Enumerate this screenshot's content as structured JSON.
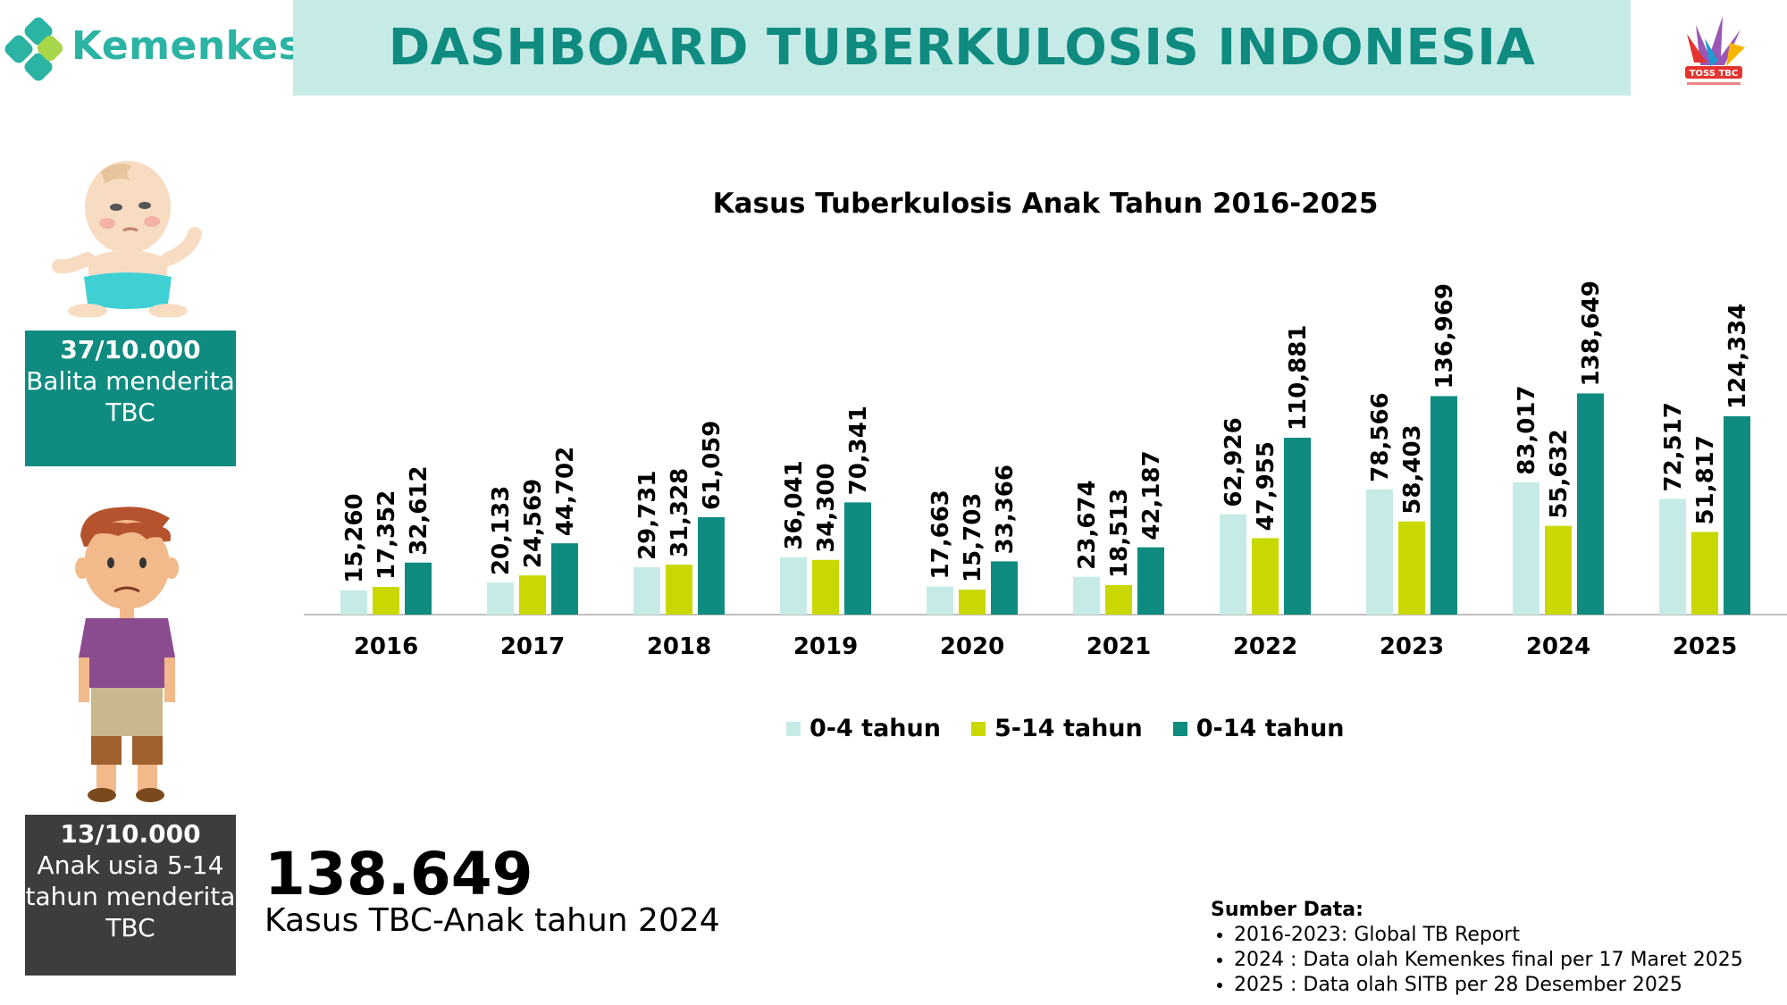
{
  "header": {
    "brand": "Kemenkes",
    "title": "DASHBOARD TUBERKULOSIS INDONESIA",
    "partner_logo_text": "TOSS TBC"
  },
  "colors": {
    "teal": "#0f8b80",
    "light_teal": "#c6ebe7",
    "lime": "#c9d800",
    "dark": "#3d3d3d",
    "brand_green": "#2bb3a3"
  },
  "stats": {
    "balita_rate": "37/10.000",
    "balita_desc": "Balita menderita TBC",
    "anak_rate": "13/10.000",
    "anak_desc": "Anak usia 5-14 tahun menderita TBC",
    "highlight_value": "138.649",
    "highlight_caption": "Kasus TBC-Anak tahun 2024"
  },
  "source": {
    "heading": "Sumber Data:",
    "items": [
      "2016-2023: Global TB Report",
      "2024 : Data olah Kemenkes final per 17 Maret 2025",
      "2025 : Data olah SITB per 28 Desember 2025"
    ]
  },
  "chart_data": {
    "type": "bar",
    "title": "Kasus Tuberkulosis Anak Tahun 2016-2025",
    "categories": [
      "2016",
      "2017",
      "2018",
      "2019",
      "2020",
      "2021",
      "2022",
      "2023",
      "2024",
      "2025"
    ],
    "series": [
      {
        "name": "0-4 tahun",
        "color": "#c6ebe7",
        "values": [
          15260,
          20133,
          29731,
          36041,
          17663,
          23674,
          62926,
          78566,
          83017,
          72517
        ],
        "labels": [
          "15,260",
          "20,133",
          "29,731",
          "36,041",
          "17,663",
          "23,674",
          "62,926",
          "78,566",
          "83,017",
          "72,517"
        ]
      },
      {
        "name": "5-14 tahun",
        "color": "#c9d800",
        "values": [
          17352,
          24569,
          31328,
          34300,
          15703,
          18513,
          47955,
          58403,
          55632,
          51817
        ],
        "labels": [
          "17,352",
          "24,569",
          "31,328",
          "34,300",
          "15,703",
          "18,513",
          "47,955",
          "58,403",
          "55,632",
          "51,817"
        ]
      },
      {
        "name": "0-14 tahun",
        "color": "#0f8b80",
        "values": [
          32612,
          44702,
          61059,
          70341,
          33366,
          42187,
          110881,
          136969,
          138649,
          124334
        ],
        "labels": [
          "32,612",
          "44,702",
          "61,059",
          "70,341",
          "33,366",
          "42,187",
          "110,881",
          "136,969",
          "138,649",
          "124,334"
        ]
      }
    ],
    "ylim": [
      0,
      140000
    ],
    "grid": false,
    "legend_position": "bottom"
  }
}
